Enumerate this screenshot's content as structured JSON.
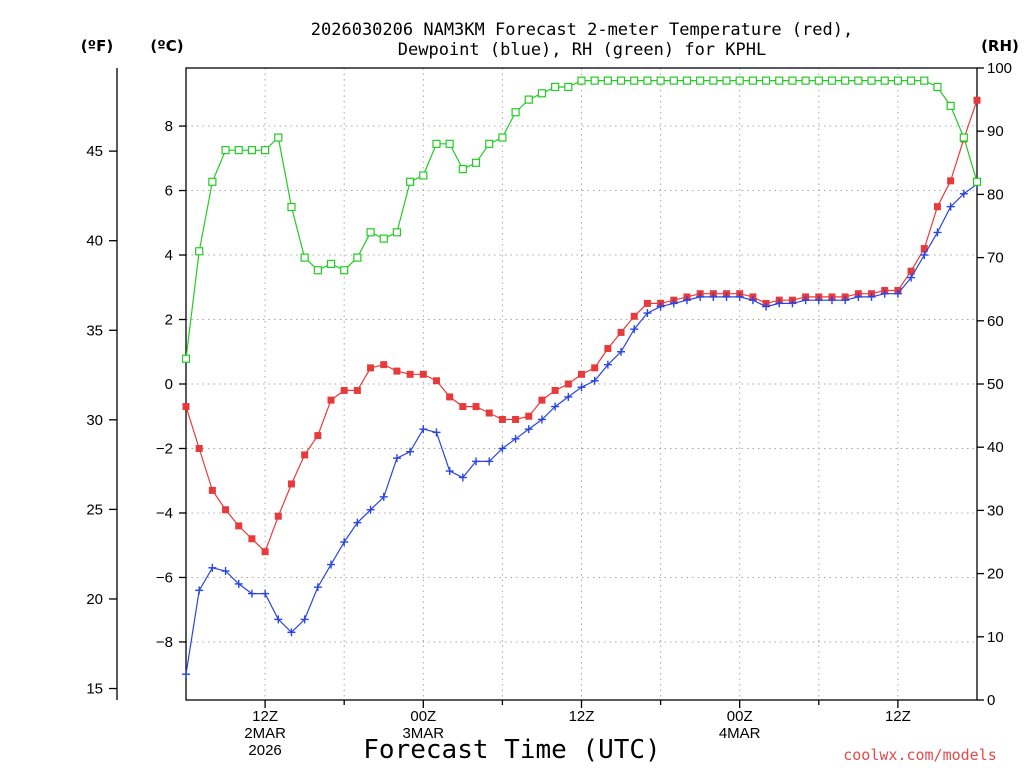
{
  "chart_data": {
    "type": "line",
    "title_lines": [
      "2026030206 NAM3KM Forecast 2-meter Temperature (red),",
      "Dewpoint (blue), RH (green) for KPHL"
    ],
    "unit_f": "(ºF)",
    "unit_c": "(ºC)",
    "unit_rh": "(RH)",
    "xlabel": "Forecast Time (UTC)",
    "credit": "coolwx.com/models",
    "x_range_hours": [
      6,
      66
    ],
    "celsius_axis": {
      "range": [
        -9.8,
        9.8
      ],
      "ticks": [
        -8,
        -6,
        -4,
        -2,
        0,
        2,
        4,
        6,
        8
      ],
      "labels": [
        "−8",
        "−6",
        "−4",
        "−2",
        "0",
        "2",
        "4",
        "6",
        "8"
      ]
    },
    "fahrenheit_axis": {
      "ticks": [
        15,
        20,
        25,
        30,
        35,
        40,
        45
      ],
      "labels": [
        "15",
        "20",
        "25",
        "30",
        "35",
        "40",
        "45"
      ]
    },
    "rh_axis": {
      "range": [
        0,
        100
      ],
      "ticks": [
        0,
        10,
        20,
        30,
        40,
        50,
        60,
        70,
        80,
        90,
        100
      ],
      "labels": [
        "0",
        "10",
        "20",
        "30",
        "40",
        "50",
        "60",
        "70",
        "80",
        "90",
        "100"
      ]
    },
    "x_ticks": [
      {
        "hour": 12,
        "lines": [
          "12Z",
          "2MAR",
          "2026"
        ]
      },
      {
        "hour": 24,
        "lines": [
          "00Z",
          "3MAR"
        ]
      },
      {
        "hour": 36,
        "lines": [
          "12Z"
        ]
      },
      {
        "hour": 48,
        "lines": [
          "00Z",
          "4MAR"
        ]
      },
      {
        "hour": 60,
        "lines": [
          "12Z"
        ]
      }
    ],
    "hours": [
      6,
      7,
      8,
      9,
      10,
      11,
      12,
      13,
      14,
      15,
      16,
      17,
      18,
      19,
      20,
      21,
      22,
      23,
      24,
      25,
      26,
      27,
      28,
      29,
      30,
      31,
      32,
      33,
      34,
      35,
      36,
      37,
      38,
      39,
      40,
      41,
      42,
      43,
      44,
      45,
      46,
      47,
      48,
      49,
      50,
      51,
      52,
      53,
      54,
      55,
      56,
      57,
      58,
      59,
      60,
      61,
      62,
      63,
      64,
      65,
      66
    ],
    "series": [
      {
        "name": "Temperature",
        "color": "#e83a3a",
        "marker": "filled-square",
        "values": [
          -0.7,
          -2.0,
          -3.3,
          -3.9,
          -4.4,
          -4.8,
          -5.2,
          -4.1,
          -3.1,
          -2.2,
          -1.6,
          -0.5,
          -0.2,
          -0.2,
          0.5,
          0.6,
          0.4,
          0.3,
          0.3,
          0.1,
          -0.4,
          -0.7,
          -0.7,
          -0.9,
          -1.1,
          -1.1,
          -1.0,
          -0.5,
          -0.2,
          0.0,
          0.3,
          0.5,
          1.1,
          1.6,
          2.1,
          2.5,
          2.5,
          2.6,
          2.7,
          2.8,
          2.8,
          2.8,
          2.8,
          2.7,
          2.5,
          2.6,
          2.6,
          2.7,
          2.7,
          2.7,
          2.7,
          2.8,
          2.8,
          2.9,
          2.9,
          3.5,
          4.2,
          5.5,
          6.3,
          7.6,
          8.8
        ]
      },
      {
        "name": "Dewpoint",
        "color": "#2a45e0",
        "marker": "plus",
        "values": [
          -9.0,
          -6.4,
          -5.7,
          -5.8,
          -6.2,
          -6.5,
          -6.5,
          -7.3,
          -7.7,
          -7.3,
          -6.3,
          -5.6,
          -4.9,
          -4.3,
          -3.9,
          -3.5,
          -2.3,
          -2.1,
          -1.4,
          -1.5,
          -2.7,
          -2.9,
          -2.4,
          -2.4,
          -2.0,
          -1.7,
          -1.4,
          -1.1,
          -0.7,
          -0.4,
          -0.1,
          0.1,
          0.6,
          1.0,
          1.7,
          2.2,
          2.4,
          2.5,
          2.6,
          2.7,
          2.7,
          2.7,
          2.7,
          2.6,
          2.4,
          2.5,
          2.5,
          2.6,
          2.6,
          2.6,
          2.6,
          2.7,
          2.7,
          2.8,
          2.8,
          3.3,
          4.0,
          4.7,
          5.5,
          5.9,
          6.2
        ]
      },
      {
        "name": "Relative Humidity",
        "color": "#22cc22",
        "marker": "open-square",
        "values": [
          54,
          71,
          82,
          87,
          87,
          87,
          87,
          89,
          78,
          70,
          68,
          69,
          68,
          70,
          74,
          73,
          74,
          82,
          83,
          88,
          88,
          84,
          85,
          88,
          89,
          93,
          95,
          96,
          97,
          97,
          98,
          98,
          98,
          98,
          98,
          98,
          98,
          98,
          98,
          98,
          98,
          98,
          98,
          98,
          98,
          98,
          98,
          98,
          98,
          98,
          98,
          98,
          98,
          98,
          98,
          98,
          98,
          97,
          94,
          89,
          82
        ]
      }
    ]
  }
}
